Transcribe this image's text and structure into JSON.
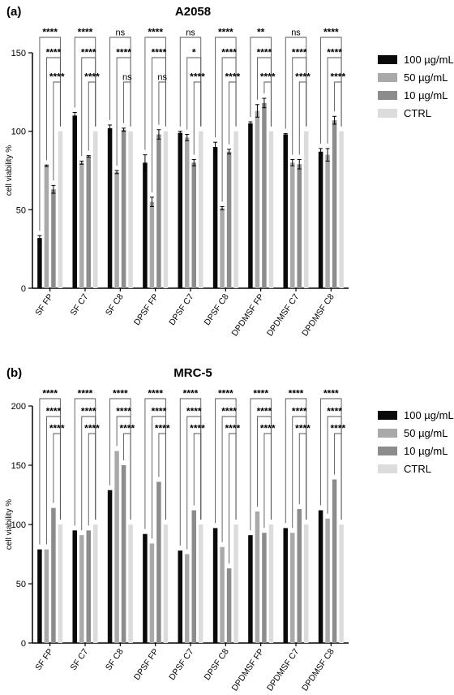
{
  "chart_data": [
    {
      "type": "bar",
      "panel_label": "(a)",
      "title": "A2058",
      "ylabel": "cell viability %",
      "xlabel": "",
      "ylim": [
        0,
        150
      ],
      "yticks": [
        "0",
        "50",
        "100",
        "150"
      ],
      "categories": [
        "SF FP",
        "SF C7",
        "SF C8",
        "DPSF FP",
        "DPSF C7",
        "DPSF C8",
        "DPDMSF FP",
        "DPDMSF C7",
        "DPDMSF C8"
      ],
      "series": [
        {
          "name": "100 µg/mL",
          "color": "#0a0a0a",
          "values": [
            32,
            110,
            102,
            80,
            99,
            90,
            105,
            98,
            87
          ],
          "errors": [
            1.5,
            2,
            2,
            5,
            1,
            3,
            1,
            0.5,
            2
          ]
        },
        {
          "name": "50 µg/mL",
          "color": "#a9a9a9",
          "values": [
            78,
            80,
            74,
            55,
            96,
            51,
            113,
            80,
            85
          ],
          "errors": [
            0.5,
            1,
            1,
            3,
            2,
            1,
            4,
            2,
            4
          ]
        },
        {
          "name": "10 µg/mL",
          "color": "#8c8c8c",
          "values": [
            63,
            84,
            101,
            98,
            80,
            87,
            118,
            79,
            107
          ],
          "errors": [
            2.5,
            0.5,
            1,
            3,
            2,
            1.5,
            3,
            3,
            2.5
          ]
        },
        {
          "name": "CTRL",
          "color": "#dcdcdc",
          "values": [
            100,
            100,
            100,
            100,
            100,
            100,
            100,
            100,
            100
          ],
          "errors": [
            0,
            0,
            0,
            0,
            0,
            0,
            0,
            0,
            0
          ]
        }
      ],
      "significance": [
        [
          "****",
          "****",
          "****"
        ],
        [
          "****",
          "****",
          "****"
        ],
        [
          "ns",
          "****",
          "ns"
        ],
        [
          "****",
          "****",
          "ns"
        ],
        [
          "ns",
          "*",
          "****"
        ],
        [
          "****",
          "****",
          "****"
        ],
        [
          "**",
          "****",
          "****"
        ],
        [
          "ns",
          "****",
          "****"
        ],
        [
          "****",
          "****",
          "****"
        ]
      ]
    },
    {
      "type": "bar",
      "panel_label": "(b)",
      "title": "MRC-5",
      "ylabel": "cell viability %",
      "xlabel": "",
      "ylim": [
        0,
        200
      ],
      "yticks": [
        "0",
        "50",
        "100",
        "150",
        "200"
      ],
      "categories": [
        "SF FP",
        "SF C7",
        "SF C8",
        "DPSF FP",
        "DPSF C7",
        "DPSF C8",
        "DPDMSF FP",
        "DPDMSF C7",
        "DPDMSF C8"
      ],
      "series": [
        {
          "name": "100 µg/mL",
          "color": "#0a0a0a",
          "values": [
            79,
            95,
            129,
            92,
            78,
            97,
            91,
            97,
            112
          ],
          "errors": [
            0,
            0,
            0,
            0,
            0,
            0,
            0,
            0,
            0
          ]
        },
        {
          "name": "50 µg/mL",
          "color": "#a9a9a9",
          "values": [
            79,
            91,
            162,
            84,
            75,
            81,
            111,
            93,
            105
          ],
          "errors": [
            0,
            0,
            0,
            0,
            0,
            0,
            0,
            0,
            0
          ]
        },
        {
          "name": "10 µg/mL",
          "color": "#8c8c8c",
          "values": [
            114,
            95,
            150,
            136,
            112,
            63,
            93,
            113,
            138
          ],
          "errors": [
            0,
            0,
            0,
            0,
            0,
            0,
            0,
            0,
            0
          ]
        },
        {
          "name": "CTRL",
          "color": "#dcdcdc",
          "values": [
            100,
            100,
            100,
            100,
            100,
            100,
            100,
            100,
            100
          ],
          "errors": [
            0,
            0,
            0,
            0,
            0,
            0,
            0,
            0,
            0
          ]
        }
      ],
      "significance": [
        [
          "****",
          "****",
          "****"
        ],
        [
          "****",
          "****",
          "****"
        ],
        [
          "****",
          "****",
          "****"
        ],
        [
          "****",
          "****",
          "****"
        ],
        [
          "****",
          "****",
          "****"
        ],
        [
          "****",
          "****",
          "****"
        ],
        [
          "****",
          "****",
          "****"
        ],
        [
          "****",
          "****",
          "****"
        ],
        [
          "****",
          "****",
          "****"
        ]
      ]
    }
  ]
}
